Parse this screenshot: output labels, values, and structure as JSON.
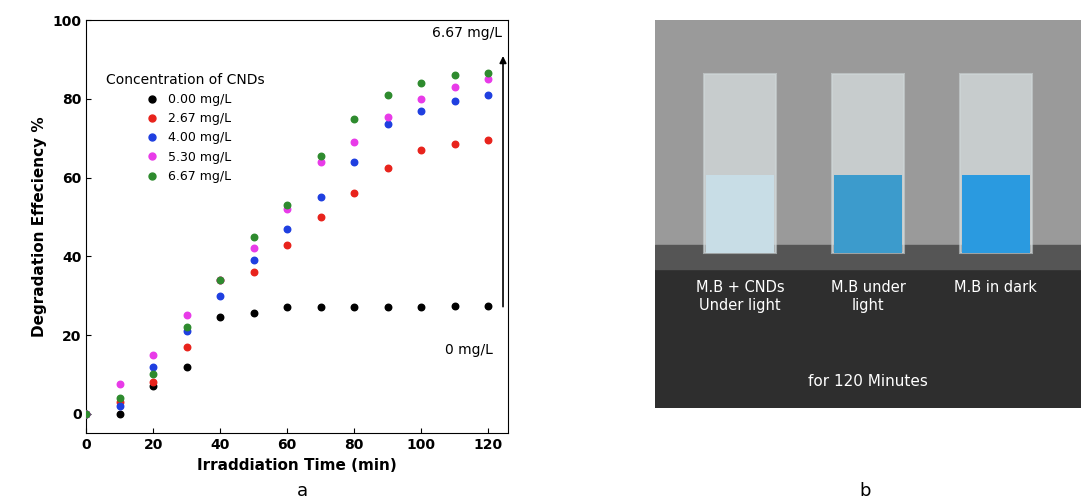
{
  "chart_data": {
    "type": "scatter",
    "x_label": "Irraddiation Time (min)",
    "y_label": "Degradation Effeciency %",
    "x": [
      0,
      10,
      20,
      30,
      40,
      50,
      60,
      70,
      80,
      90,
      100,
      110,
      120
    ],
    "series": [
      {
        "name": "0.00 mg/L",
        "color": "#000000",
        "values": [
          0,
          0,
          7,
          12,
          24.5,
          25.5,
          27,
          27,
          27,
          27,
          27,
          27.5,
          27.5
        ]
      },
      {
        "name": "2.67 mg/L",
        "color": "#e8231c",
        "values": [
          0,
          3,
          8,
          17,
          34,
          36,
          43,
          50,
          56,
          62.5,
          67,
          68.5,
          69.5
        ]
      },
      {
        "name": "4.00 mg/L",
        "color": "#1f3fe0",
        "values": [
          0,
          2,
          12,
          21,
          30,
          39,
          47,
          55,
          64,
          73.5,
          77,
          79.5,
          81
        ]
      },
      {
        "name": "5.30 mg/L",
        "color": "#e83be8",
        "values": [
          0,
          7.5,
          15,
          25,
          34,
          42,
          52,
          64,
          69,
          75.5,
          80,
          83,
          85
        ]
      },
      {
        "name": "6.67 mg/L",
        "color": "#2e8b2e",
        "values": [
          0,
          4,
          10,
          22,
          34,
          45,
          53,
          65.5,
          75,
          81,
          84,
          86,
          86.5
        ]
      }
    ],
    "legend_title": "Concentration of CNDs",
    "legend": "upper left",
    "marker": "o",
    "annotations": [
      "6.67 mg/L",
      "0 mg/L"
    ],
    "xlim": [
      0,
      126
    ],
    "xticks": [
      0,
      20,
      40,
      60,
      80,
      100,
      120
    ],
    "ylim": [
      -5,
      100
    ],
    "yticks": [
      0,
      20,
      40,
      60,
      80,
      100
    ],
    "grid": false
  },
  "photo": {
    "labels": [
      "M.B + CNDs\nUnder light",
      "M.B under\nlight",
      "M.B in dark"
    ],
    "caption": "for 120 Minutes"
  },
  "panel_labels": [
    "a",
    "b"
  ]
}
